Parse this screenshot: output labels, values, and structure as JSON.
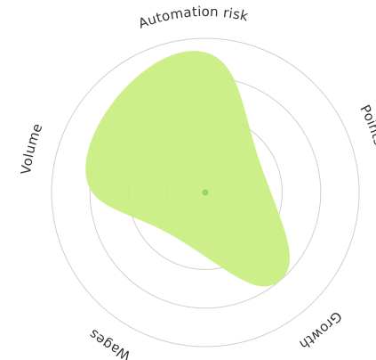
{
  "chart_data": {
    "type": "radar",
    "title": "",
    "axes": [
      "Automation risk",
      "Points",
      "Growth",
      "Wages",
      "Volume"
    ],
    "rings": 4,
    "range": [
      0,
      100
    ],
    "series": [
      {
        "values": [
          92,
          40,
          75,
          35,
          80
        ],
        "color": "#c8ee7f"
      }
    ],
    "center_dot_color": "#9bd36a",
    "ring_color": "#cfcfcf",
    "label_color": "#333333",
    "grid": true,
    "legend": "none"
  }
}
